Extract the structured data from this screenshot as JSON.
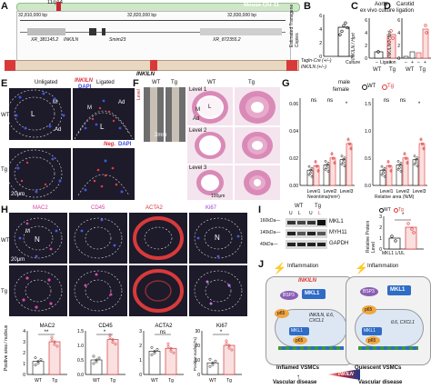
{
  "panels": {
    "A": "A",
    "B": "B",
    "C": "C",
    "D": "D",
    "E": "E",
    "F": "F",
    "G": "G",
    "H": "H",
    "I": "I",
    "J": "J"
  },
  "a": {
    "band": "11qA4",
    "chr": "Mouse Chr 11",
    "ticks": [
      "32,810,000 bp",
      "32,820,000 bp",
      "32,830,000 bp"
    ],
    "tick_mark": "→",
    "tick_mark_left": "←",
    "genes": [
      "XR_381145.2",
      "Smim23",
      "XR_872355.2"
    ],
    "gene_italic": "INKILN",
    "tick_mark_right": "→"
  },
  "b": {
    "ylabel": "Estimated Transgene Copies",
    "categories": [
      "Tagln-Cre (+/–)",
      "INKILN (+/–)"
    ],
    "chart_data": {
      "type": "bar",
      "values": [
        null,
        4.0
      ],
      "points": [
        3.1,
        3.6,
        4.4,
        4.8,
        4.1
      ],
      "ylim": [
        0,
        6
      ],
      "yticks": [
        "0",
        "2",
        "4",
        "6"
      ]
    }
  },
  "c": {
    "title": "Aorta",
    "subtitle": "ex vivo culture",
    "ylabel": "INKILN / Hprt",
    "xlabels": [
      "Culture",
      "WT",
      "Tg"
    ],
    "sign": [
      "–",
      "+"
    ],
    "yticks": [
      "0",
      "2",
      "4",
      "6"
    ],
    "chart_data": {
      "type": "bar",
      "categories": [
        "WT",
        "Tg"
      ],
      "values": [
        1,
        3.6
      ],
      "ylim": [
        0,
        6
      ]
    }
  },
  "d": {
    "title": "Carotid ligation",
    "ylabel": "INKILN / Hprt",
    "xlabels": [
      "Ligation",
      "WT",
      "Tg"
    ],
    "signs": [
      "–",
      "+",
      "–",
      "+"
    ],
    "yticks": [
      "0",
      "2",
      "4",
      "6"
    ],
    "chart_data": {
      "type": "bar",
      "categories": [
        "WT–",
        "WT+",
        "Tg–",
        "Tg+"
      ],
      "values": [
        0.3,
        1.0,
        0.9,
        4.4
      ],
      "ylim": [
        0,
        6
      ]
    }
  },
  "e": {
    "cols": [
      "Unligated",
      "Ligated"
    ],
    "legend_gene": "INKILN",
    "legend_dapi": "DAPI",
    "neg": "Neg.",
    "neg_dapi": "DAPI",
    "rows": [
      "WT",
      "Tg"
    ],
    "scale": "20μm",
    "labels": [
      "L",
      "M",
      "Ad",
      "L",
      "Ad",
      "M"
    ]
  },
  "f": {
    "cols": [
      "WT",
      "Tg"
    ],
    "levels": [
      "Level 1",
      "Level 2",
      "Level 3"
    ],
    "level_side": "Level",
    "scale1": "2mm",
    "scale2": "100μm",
    "labels": [
      "L",
      "M",
      "Ad"
    ]
  },
  "g": {
    "legend": [
      "male",
      "female",
      "WT",
      "Tg"
    ],
    "ylabel": "μm²",
    "ns": [
      "ns",
      "ns",
      "*",
      "ns",
      "ns",
      "*"
    ],
    "left_xlabel": "Neointima(mm²)",
    "right_xlabel": "Relative area (N/M)",
    "xcats": [
      "Level1",
      "Level2",
      "Level3"
    ],
    "yticks_left": [
      "0.00",
      "0.02",
      "0.04",
      "0.06"
    ],
    "yticks_right": [
      "0.0",
      "0.5",
      "1.0",
      "1.5"
    ],
    "chart_data": {
      "type": "bar",
      "categories": [
        "Level1",
        "Level2",
        "Level3"
      ],
      "series": [
        {
          "name": "WT",
          "values": [
            0.012,
            0.014,
            0.01
          ]
        },
        {
          "name": "Tg",
          "values": [
            0.018,
            0.02,
            0.022
          ]
        }
      ]
    }
  },
  "h": {
    "cols": [
      "MAC2",
      "CD45",
      "ACTA2",
      "Ki67"
    ],
    "rows": [
      "WT",
      "Tg"
    ],
    "scale": "20μm",
    "labels": [
      "M",
      "N",
      "N"
    ],
    "ylabel": "Positive area / nucleus",
    "ylabel_ki": "Positive nuclei (%)",
    "xcats": [
      "WT",
      "Tg"
    ],
    "sig": [
      "**",
      "*",
      "ns",
      "*"
    ],
    "charts": [
      {
        "title": "MAC2",
        "ticks": [
          "0",
          "1",
          "2",
          "3",
          "4"
        ],
        "values": [
          1.2,
          3.0
        ]
      },
      {
        "title": "CD45",
        "ticks": [
          "0.0",
          "0.5",
          "1.0",
          "1.5"
        ],
        "values": [
          0.5,
          1.2
        ]
      },
      {
        "title": "ACTA2",
        "ticks": [
          "0",
          "1",
          "2",
          "3"
        ],
        "values": [
          1.6,
          1.8
        ]
      },
      {
        "title": "Ki67",
        "ticks": [
          "0",
          "10",
          "20",
          "30"
        ],
        "values": [
          8,
          20
        ]
      }
    ],
    "sig_color": "#cc1f1f"
  },
  "i": {
    "lanes": [
      "WT",
      "Tg"
    ],
    "sublanes": [
      "U",
      "L",
      "U",
      "L"
    ],
    "kda": [
      "160kDa—",
      "140kDa—",
      "40kDa—"
    ],
    "bands": [
      "MKL1",
      "MYH11",
      "GAPDH"
    ],
    "legend": [
      "WT",
      "Tg"
    ],
    "ylabel": "Relative Protein Level",
    "xlabel": "MKL1 L/UL",
    "sig": "*",
    "yticks": [
      "0",
      "1",
      "2",
      "3"
    ],
    "chart_data": {
      "type": "bar",
      "categories": [
        "WT",
        "Tg"
      ],
      "values": [
        1.0,
        2.0
      ],
      "ylim": [
        0,
        3
      ]
    }
  },
  "j": {
    "left": {
      "title": "Inflammation",
      "gene": "INKILN",
      "mkl1": "MKL1",
      "p65": "p65",
      "bsp": "BSP3",
      "genes": "INKILN, IL6, CXCL1",
      "genes_b": "IL6, CXCL1",
      "footer": "Inflamed VSMCs",
      "disease": "Vascular disease"
    },
    "right": {
      "title": "Inflammation",
      "mkl1": "MKL1",
      "p65": "p65",
      "bsp": "BSP3",
      "genes": "IL6, CXCL1",
      "footer": "Quiescent VSMCs",
      "disease": "Vascular disease"
    },
    "bar_label": "INKILN"
  }
}
